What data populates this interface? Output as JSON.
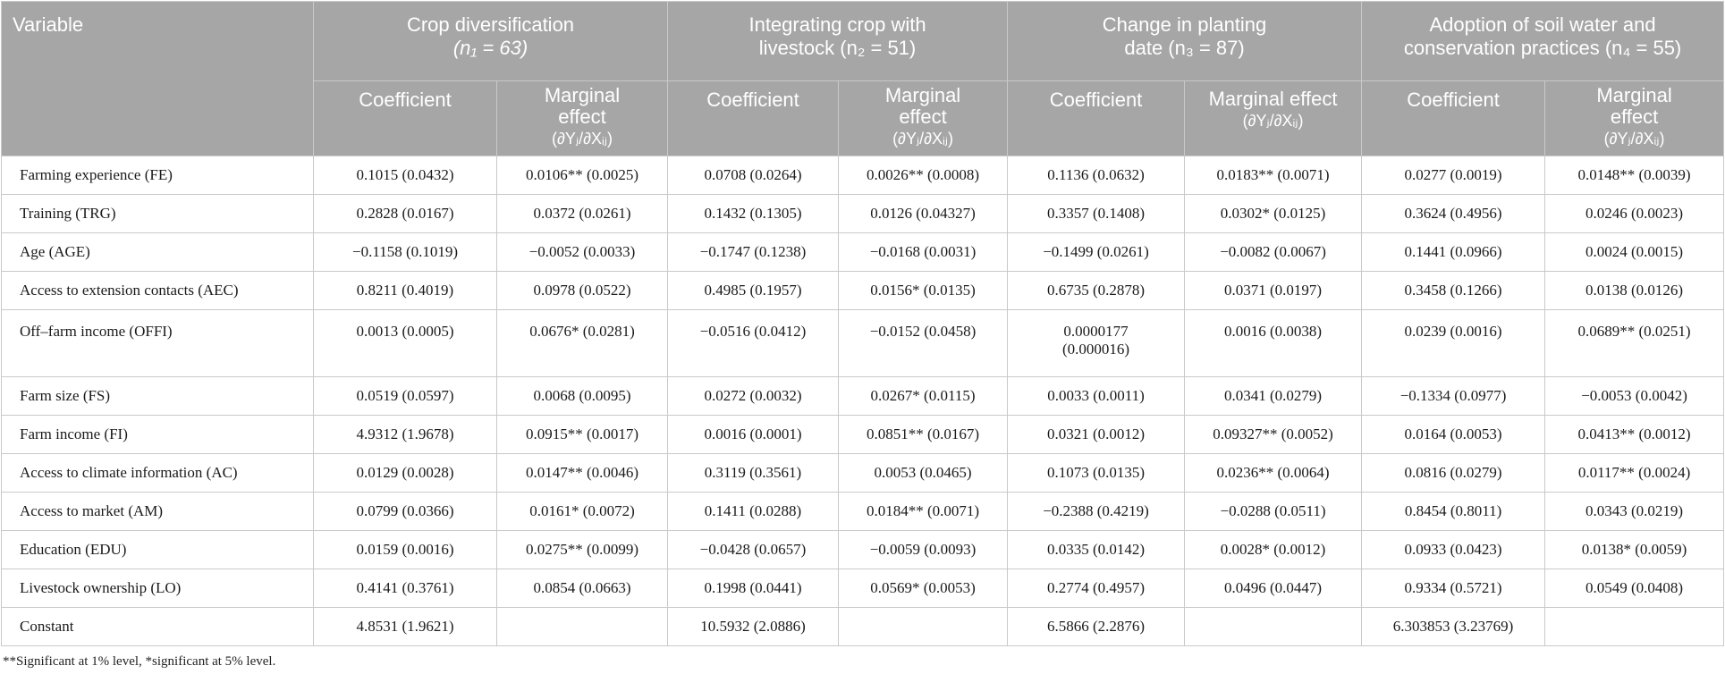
{
  "header": {
    "variable": "Variable",
    "groups": [
      {
        "line1": "Crop diversification",
        "line2": "(n₁ = 63)"
      },
      {
        "line1": "Integrating crop with",
        "line2": "livestock (n₂ = 51)"
      },
      {
        "line1": "Change in planting",
        "line2": "date (n₃ = 87)"
      },
      {
        "line1": "Adoption of soil water and",
        "line2": "conservation practices (n₄ = 55)"
      }
    ],
    "coefficient": "Coefficient",
    "marginal_line1": "Marginal",
    "marginal_line2": "effect",
    "marginal_full": "Marginal effect",
    "marginal_formula": "(∂Yⱼ/∂Xᵢⱼ)"
  },
  "rows": [
    {
      "label": "Farming experience (FE)",
      "c1": "0.1015 (0.0432)",
      "m1": "0.0106** (0.0025)",
      "c2": "0.0708 (0.0264)",
      "m2": "0.0026** (0.0008)",
      "c3": "0.1136 (0.0632)",
      "m3": "0.0183** (0.0071)",
      "c4": "0.0277 (0.0019)",
      "m4": "0.0148** (0.0039)"
    },
    {
      "label": "Training (TRG)",
      "c1": "0.2828 (0.0167)",
      "m1": "0.0372 (0.0261)",
      "c2": "0.1432 (0.1305)",
      "m2": "0.0126 (0.04327)",
      "c3": "0.3357 (0.1408)",
      "m3": "0.0302* (0.0125)",
      "c4": "0.3624 (0.4956)",
      "m4": "0.0246 (0.0023)"
    },
    {
      "label": "Age (AGE)",
      "c1": "−0.1158 (0.1019)",
      "m1": "−0.0052 (0.0033)",
      "c2": "−0.1747 (0.1238)",
      "m2": "−0.0168 (0.0031)",
      "c3": "−0.1499 (0.0261)",
      "m3": "−0.0082 (0.0067)",
      "c4": "0.1441 (0.0966)",
      "m4": "0.0024 (0.0015)"
    },
    {
      "label": "Access to extension contacts (AEC)",
      "c1": "0.8211 (0.4019)",
      "m1": "0.0978 (0.0522)",
      "c2": "0.4985 (0.1957)",
      "m2": "0.0156* (0.0135)",
      "c3": "0.6735 (0.2878)",
      "m3": "0.0371 (0.0197)",
      "c4": "0.3458 (0.1266)",
      "m4": "0.0138 (0.0126)"
    },
    {
      "label": "Off–farm income (OFFI)",
      "c1": "0.0013 (0.0005)",
      "m1": "0.0676* (0.0281)",
      "c2": "−0.0516 (0.0412)",
      "m2": "−0.0152 (0.0458)",
      "c3_line1": "0.0000177",
      "c3_line2": "(0.000016)",
      "m3": "0.0016 (0.0038)",
      "c4": "0.0239 (0.0016)",
      "m4": "0.0689** (0.0251)"
    },
    {
      "label": "Farm size (FS)",
      "c1": "0.0519 (0.0597)",
      "m1": "0.0068 (0.0095)",
      "c2": "0.0272 (0.0032)",
      "m2": "0.0267* (0.0115)",
      "c3": "0.0033 (0.0011)",
      "m3": "0.0341 (0.0279)",
      "c4": "−0.1334 (0.0977)",
      "m4": "−0.0053 (0.0042)"
    },
    {
      "label": "Farm income (FI)",
      "c1": "4.9312 (1.9678)",
      "m1": "0.0915** (0.0017)",
      "c2": "0.0016 (0.0001)",
      "m2": "0.0851** (0.0167)",
      "c3": "0.0321 (0.0012)",
      "m3": "0.09327** (0.0052)",
      "c4": "0.0164 (0.0053)",
      "m4": "0.0413** (0.0012)"
    },
    {
      "label": "Access to climate information (AC)",
      "c1": "0.0129 (0.0028)",
      "m1": "0.0147** (0.0046)",
      "c2": "0.3119 (0.3561)",
      "m2": "0.0053 (0.0465)",
      "c3": "0.1073 (0.0135)",
      "m3": "0.0236** (0.0064)",
      "c4": "0.0816 (0.0279)",
      "m4": "0.0117** (0.0024)"
    },
    {
      "label": "Access to market (AM)",
      "c1": "0.0799 (0.0366)",
      "m1": "0.0161* (0.0072)",
      "c2": "0.1411 (0.0288)",
      "m2": "0.0184** (0.0071)",
      "c3": "−0.2388 (0.4219)",
      "m3": "−0.0288 (0.0511)",
      "c4": "0.8454 (0.8011)",
      "m4": "0.0343 (0.0219)"
    },
    {
      "label": "Education (EDU)",
      "c1": "0.0159 (0.0016)",
      "m1": "0.0275** (0.0099)",
      "c2": "−0.0428 (0.0657)",
      "m2": "−0.0059 (0.0093)",
      "c3": "0.0335 (0.0142)",
      "m3": "0.0028* (0.0012)",
      "c4": "0.0933 (0.0423)",
      "m4": "0.0138* (0.0059)"
    },
    {
      "label": "Livestock ownership (LO)",
      "c1": "0.4141 (0.3761)",
      "m1": "0.0854 (0.0663)",
      "c2": "0.1998 (0.0441)",
      "m2": "0.0569* (0.0053)",
      "c3": "0.2774 (0.4957)",
      "m3": "0.0496 (0.0447)",
      "c4": "0.9334 (0.5721)",
      "m4": "0.0549 (0.0408)"
    },
    {
      "label": "Constant",
      "c1": "4.8531 (1.9621)",
      "m1": "",
      "c2": "10.5932 (2.0886)",
      "m2": "",
      "c3": "6.5866 (2.2876)",
      "m3": "",
      "c4": "6.303853 (3.23769)",
      "m4": ""
    }
  ],
  "footnote": "**Significant at 1% level, *significant at 5% level."
}
